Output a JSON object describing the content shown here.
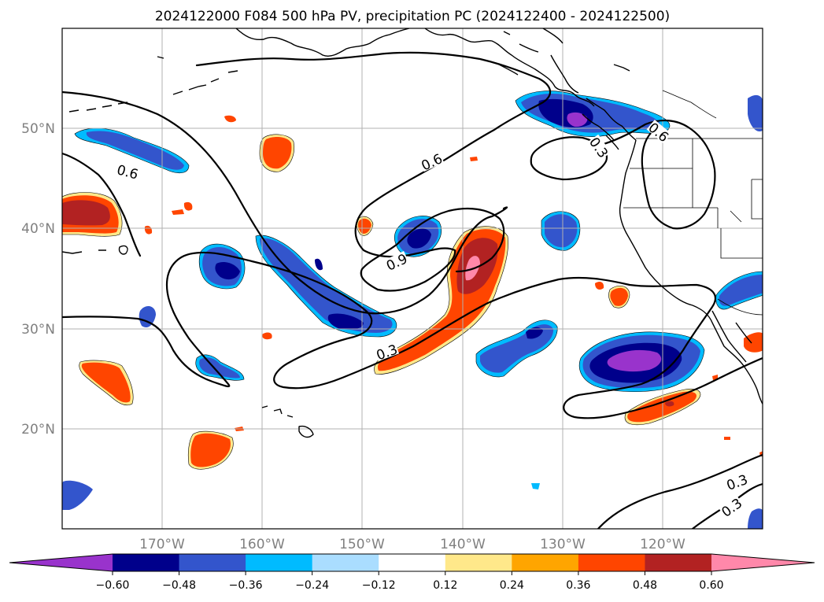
{
  "title": "2024122000 F084 500 hPa PV, precipitation PC (2024122400 - 2024122500)",
  "map": {
    "lon_min": -180,
    "lon_max": -110,
    "lat_min": 10,
    "lat_max": 60,
    "gridlines": true,
    "lon_ticks": [
      {
        "value": -170,
        "label": "170°W"
      },
      {
        "value": -160,
        "label": "160°W"
      },
      {
        "value": -150,
        "label": "150°W"
      },
      {
        "value": -140,
        "label": "140°W"
      },
      {
        "value": -130,
        "label": "130°W"
      },
      {
        "value": -120,
        "label": "120°W"
      }
    ],
    "lat_ticks": [
      {
        "value": 50,
        "label": "50°N"
      },
      {
        "value": 40,
        "label": "40°N"
      },
      {
        "value": 30,
        "label": "30°N"
      },
      {
        "value": 20,
        "label": "20°N"
      }
    ]
  },
  "colorbar": {
    "extend": "both",
    "labels": [
      "−0.60",
      "−0.48",
      "−0.36",
      "−0.24",
      "−0.12",
      "0.12",
      "0.24",
      "0.36",
      "0.48",
      "0.60"
    ],
    "colors": [
      "#9933cc",
      "#00008b",
      "#3355cc",
      "#00bbff",
      "#aaddff",
      "#ffffff",
      "#ffe88a",
      "#ffa500",
      "#ff4500",
      "#b22222",
      "#ff88aa"
    ]
  },
  "contour_labels": [
    {
      "text": "0.6",
      "lon": -173.5,
      "lat": 45.5,
      "rotate": 15
    },
    {
      "text": "0.6",
      "lon": -143,
      "lat": 46.5,
      "rotate": -25
    },
    {
      "text": "0.6",
      "lon": -120.5,
      "lat": 49.5,
      "rotate": 40
    },
    {
      "text": "0.3",
      "lon": -126.5,
      "lat": 48,
      "rotate": 55
    },
    {
      "text": "0.9",
      "lon": -146.5,
      "lat": 36.5,
      "rotate": -25
    },
    {
      "text": "0.3",
      "lon": -147.5,
      "lat": 27.5,
      "rotate": -20
    },
    {
      "text": "0.3",
      "lon": -112.5,
      "lat": 14.5,
      "rotate": -20
    },
    {
      "text": "0.3",
      "lon": -113,
      "lat": 12,
      "rotate": -35
    }
  ]
}
